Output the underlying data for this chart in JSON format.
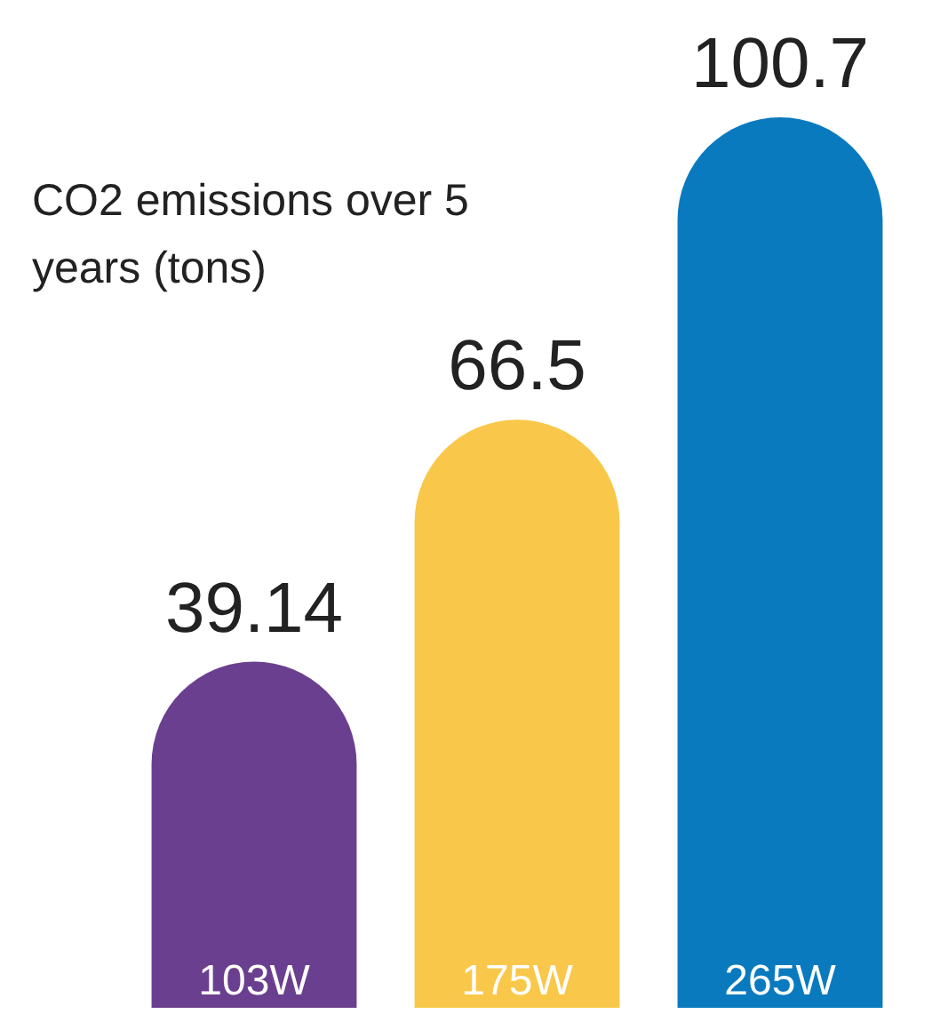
{
  "chart_data": {
    "type": "bar",
    "title": "CO2 emissions over 5 years (tons)",
    "categories": [
      "103W",
      "175W",
      "265W"
    ],
    "values": [
      39.14,
      66.5,
      100.7
    ],
    "colors": [
      "#6b3f8f",
      "#f9c84a",
      "#0a7abf"
    ],
    "data_labels": true
  }
}
